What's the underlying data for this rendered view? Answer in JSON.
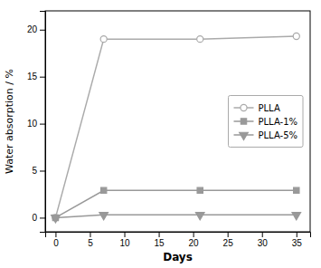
{
  "chart_data": {
    "type": "line",
    "xlabel": "Days",
    "ylabel": "Water absorption / %",
    "x": [
      0,
      7,
      21,
      35
    ],
    "series": [
      {
        "name": "PLLA",
        "color": "#aaaaaa",
        "marker": "circle-open",
        "values": [
          0,
          19.0,
          19.0,
          19.3
        ]
      },
      {
        "name": "PLLA-1%",
        "color": "#999999",
        "marker": "square",
        "values": [
          0,
          2.9,
          2.9,
          2.9
        ]
      },
      {
        "name": "PLLA-5%",
        "color": "#999999",
        "marker": "triangle-down",
        "values": [
          0,
          0.3,
          0.3,
          0.3
        ]
      }
    ],
    "xlim": [
      -1.5,
      37
    ],
    "ylim": [
      -1.5,
      22
    ],
    "xticks": [
      0,
      5,
      10,
      15,
      20,
      25,
      30,
      35
    ],
    "yticks": [
      0,
      5,
      10,
      15,
      20
    ],
    "legend": "center right",
    "grid": false
  }
}
